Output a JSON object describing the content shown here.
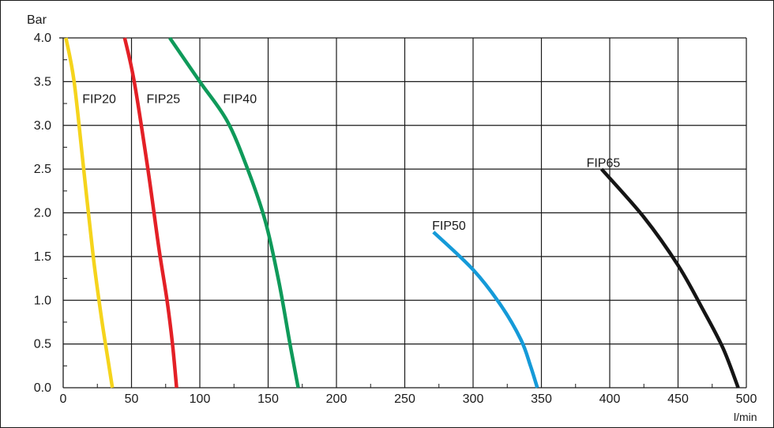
{
  "chart_data": {
    "type": "line",
    "title": "",
    "xlabel": "l/min",
    "ylabel": "Bar",
    "xlim": [
      0,
      500
    ],
    "ylim": [
      0,
      4.0
    ],
    "xticks": [
      "0",
      "50",
      "100",
      "150",
      "200",
      "250",
      "300",
      "350",
      "400",
      "450",
      "500"
    ],
    "yticks": [
      "0.0",
      "0.5",
      "1.0",
      "1.5",
      "2.0",
      "2.5",
      "3.0",
      "3.5",
      "4.0"
    ],
    "grid": true,
    "legend": "none",
    "series": [
      {
        "name": "FIP20",
        "color": "#f5d41c",
        "x": [
          2,
          8,
          15,
          22,
          28,
          33,
          36
        ],
        "y": [
          4.0,
          3.5,
          2.5,
          1.5,
          0.8,
          0.3,
          0.0
        ]
      },
      {
        "name": "FIP25",
        "color": "#e32026",
        "x": [
          45,
          52,
          62,
          70,
          76,
          80,
          83
        ],
        "y": [
          4.0,
          3.5,
          2.5,
          1.6,
          1.0,
          0.5,
          0.0
        ]
      },
      {
        "name": "FIP40",
        "color": "#0f9a5a",
        "x": [
          78,
          100,
          120,
          135,
          148,
          158,
          166,
          172
        ],
        "y": [
          4.0,
          3.5,
          3.05,
          2.5,
          1.9,
          1.2,
          0.5,
          0.0
        ]
      },
      {
        "name": "FIP50",
        "color": "#159ad8",
        "x": [
          271,
          300,
          320,
          335,
          342,
          347
        ],
        "y": [
          1.78,
          1.35,
          0.95,
          0.55,
          0.25,
          0.0
        ]
      },
      {
        "name": "FIP65",
        "color": "#151515",
        "x": [
          394,
          425,
          450,
          468,
          483,
          494
        ],
        "y": [
          2.5,
          1.95,
          1.4,
          0.9,
          0.45,
          0.0
        ]
      }
    ],
    "annotations": [
      {
        "text": "FIP20",
        "x": 14,
        "y": 3.3
      },
      {
        "text": "FIP25",
        "x": 61,
        "y": 3.3
      },
      {
        "text": "FIP40",
        "x": 117,
        "y": 3.3
      },
      {
        "text": "FIP50",
        "x": 270,
        "y": 1.85
      },
      {
        "text": "FIP65",
        "x": 383,
        "y": 2.57
      }
    ]
  }
}
